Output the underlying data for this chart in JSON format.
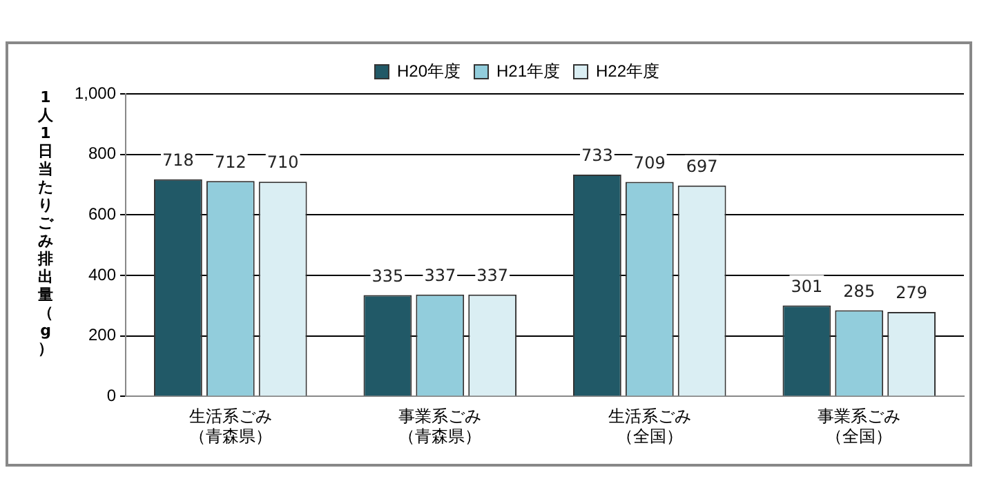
{
  "chart_data": {
    "type": "bar",
    "ylabel": "1人1日当たりごみ排出量（g）",
    "categories": [
      "生活系ごみ（青森県）",
      "事業系ごみ（青森県）",
      "生活系ごみ（全国）",
      "事業系ごみ（全国）"
    ],
    "series": [
      {
        "name": "H20年度",
        "color": "#215967",
        "values": [
          718,
          335,
          733,
          301
        ]
      },
      {
        "name": "H21年度",
        "color": "#92cddc",
        "values": [
          712,
          337,
          709,
          285
        ]
      },
      {
        "name": "H22年度",
        "color": "#daeef3",
        "values": [
          710,
          337,
          697,
          279
        ]
      }
    ],
    "ylim": [
      0,
      1000
    ],
    "yticks": [
      0,
      200,
      400,
      600,
      800,
      {
        "value": 1000,
        "label": "1,000"
      }
    ],
    "grid": "y",
    "legend": "top",
    "data_labels": true
  }
}
